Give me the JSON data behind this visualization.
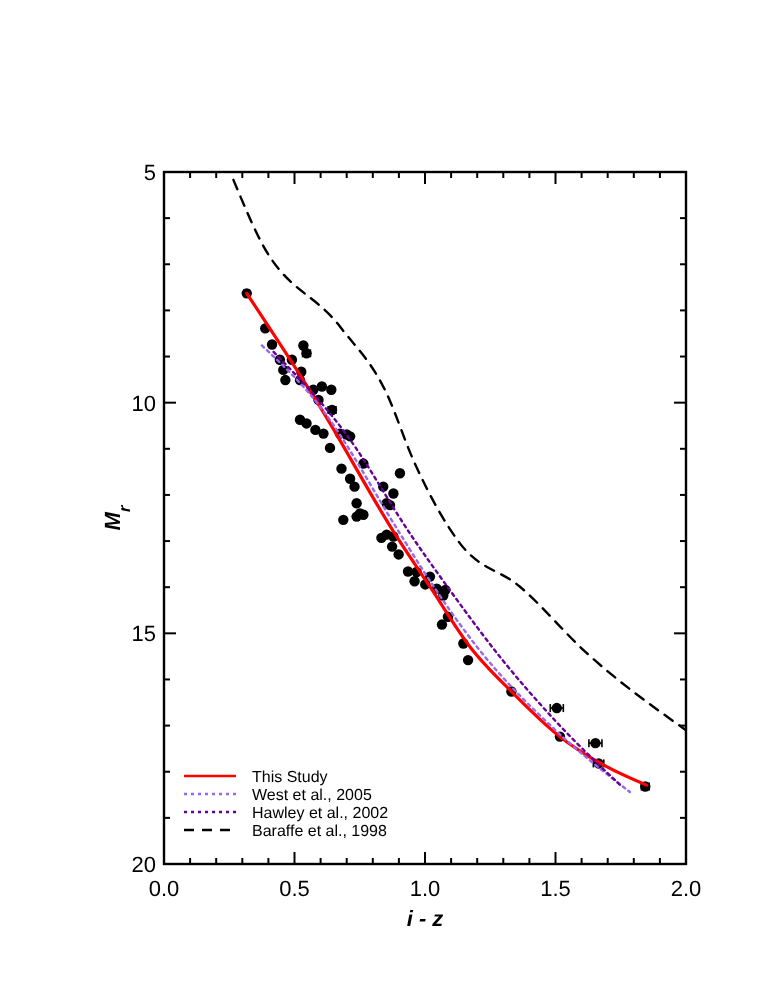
{
  "chart_data": {
    "type": "scatter",
    "xlabel": "i - z",
    "ylabel": "M$_{r}$",
    "xlim": [
      0,
      2
    ],
    "ylim": [
      20,
      5
    ],
    "xticks": [
      {
        "value": 0,
        "label": "0.0"
      },
      {
        "value": 0.1,
        "label": null
      },
      {
        "value": 0.2,
        "label": null
      },
      {
        "value": 0.3,
        "label": null
      },
      {
        "value": 0.4,
        "label": null
      },
      {
        "value": 0.5,
        "label": "0.5"
      },
      {
        "value": 0.6,
        "label": null
      },
      {
        "value": 0.7,
        "label": null
      },
      {
        "value": 0.8,
        "label": null
      },
      {
        "value": 0.9,
        "label": null
      },
      {
        "value": 1,
        "label": "1.0"
      },
      {
        "value": 1.1,
        "label": null
      },
      {
        "value": 1.2,
        "label": null
      },
      {
        "value": 1.3,
        "label": null
      },
      {
        "value": 1.4,
        "label": null
      },
      {
        "value": 1.5,
        "label": "1.5"
      },
      {
        "value": 1.6,
        "label": null
      },
      {
        "value": 1.7,
        "label": null
      },
      {
        "value": 1.8,
        "label": null
      },
      {
        "value": 1.9,
        "label": null
      },
      {
        "value": 2,
        "label": "2.0"
      }
    ],
    "yticks": [
      5,
      {
        "value": 6,
        "label": null
      },
      {
        "value": 7,
        "label": null
      },
      {
        "value": 8,
        "label": null
      },
      {
        "value": 9,
        "label": null
      },
      10,
      {
        "value": 11,
        "label": null
      },
      {
        "value": 12,
        "label": null
      },
      {
        "value": 13,
        "label": null
      },
      {
        "value": 14,
        "label": null
      },
      15,
      {
        "value": 16,
        "label": null
      },
      {
        "value": 17,
        "label": null
      },
      {
        "value": 18,
        "label": null
      },
      {
        "value": 19,
        "label": null
      },
      20
    ],
    "grid": false,
    "legend": "bottom left",
    "series": [
      {
        "color": "#000000",
        "marker": "circle",
        "x": [
          0.317,
          0.388,
          0.414,
          0.444,
          0.457,
          0.465,
          0.49,
          0.534,
          0.546,
          0.526,
          0.521,
          0.572,
          0.605,
          0.641,
          0.592,
          0.644,
          0.521,
          0.546,
          0.58,
          0.611,
          0.636,
          0.674,
          0.7,
          0.713,
          0.68,
          0.713,
          0.73,
          0.764,
          0.904,
          0.738,
          0.751,
          0.84,
          0.853,
          0.879,
          0.687,
          0.764,
          0.738,
          0.866,
          0.833,
          0.853,
          0.879,
          0.874,
          0.899,
          0.935,
          0.96,
          0.968,
          1.001,
          1.019,
          1.045,
          1.078,
          1.07,
          1.088,
          1.065,
          1.147,
          1.165,
          1.331,
          1.505,
          1.517,
          1.653,
          1.665,
          1.844
        ],
        "values": [
          7.63,
          8.39,
          8.74,
          9.07,
          9.29,
          9.51,
          9.07,
          8.76,
          8.93,
          9.33,
          9.51,
          9.72,
          9.65,
          9.72,
          9.94,
          10.16,
          10.37,
          10.45,
          10.59,
          10.67,
          10.98,
          10.67,
          10.69,
          10.73,
          11.43,
          11.65,
          11.82,
          11.32,
          11.53,
          12.18,
          12.4,
          11.82,
          12.18,
          11.97,
          12.54,
          12.43,
          12.47,
          12.22,
          12.93,
          12.86,
          12.9,
          13.12,
          13.29,
          13.66,
          13.87,
          13.67,
          13.94,
          13.77,
          14.03,
          14.06,
          14.18,
          14.64,
          14.81,
          15.22,
          15.58,
          16.26,
          16.62,
          17.24,
          17.38,
          17.82,
          18.32
        ],
        "xerrors": [
          0.01,
          null,
          null,
          null,
          null,
          null,
          null,
          null,
          0.015,
          null,
          null,
          null,
          null,
          null,
          null,
          0.015,
          null,
          null,
          null,
          null,
          null,
          null,
          null,
          null,
          null,
          null,
          null,
          null,
          null,
          null,
          null,
          null,
          null,
          null,
          null,
          null,
          null,
          null,
          null,
          null,
          null,
          null,
          null,
          null,
          null,
          null,
          null,
          null,
          null,
          null,
          null,
          null,
          null,
          null,
          null,
          null,
          0.025,
          null,
          0.025,
          0.02,
          0.015
        ]
      },
      {
        "type": "line",
        "name": "This Study",
        "color": "#ff0000",
        "line_style": "solid",
        "marker": "none",
        "x": [
          0.317,
          0.598,
          0.891,
          1.019,
          1.172,
          1.338,
          1.517,
          1.696,
          1.849
        ],
        "values": [
          7.63,
          10.09,
          12.9,
          13.99,
          15.29,
          16.3,
          17.24,
          17.89,
          18.29
        ]
      },
      {
        "type": "line",
        "name": "West et al., 2005",
        "color": "#9966ee",
        "line_style": "dotted",
        "marker": "none",
        "x": [
          0.375,
          0.6,
          0.9,
          1.0,
          1.2,
          1.5,
          1.785
        ],
        "values": [
          8.76,
          10.1,
          12.8,
          13.7,
          15.3,
          17.1,
          18.44
        ]
      },
      {
        "type": "line",
        "name": "Hawley et al., 2002",
        "color": "#660099",
        "line_style": "dotted",
        "marker": "none",
        "x": [
          0.42,
          0.7,
          0.95,
          1.1,
          1.3,
          1.5,
          1.75
        ],
        "values": [
          8.9,
          10.7,
          12.9,
          14.1,
          15.6,
          16.9,
          18.3
        ]
      },
      {
        "type": "line",
        "name": "Baraffe et al., 1998",
        "color": "#000000",
        "line_style": "dashed",
        "marker": "none",
        "x": [
          0.266,
          0.368,
          0.674,
          0.853,
          0.955,
          1.134,
          1.364,
          1.62,
          2.0
        ],
        "values": [
          5.17,
          6.47,
          8.35,
          9.8,
          11.24,
          13.05,
          13.99,
          15.43,
          17.1
        ]
      }
    ]
  }
}
